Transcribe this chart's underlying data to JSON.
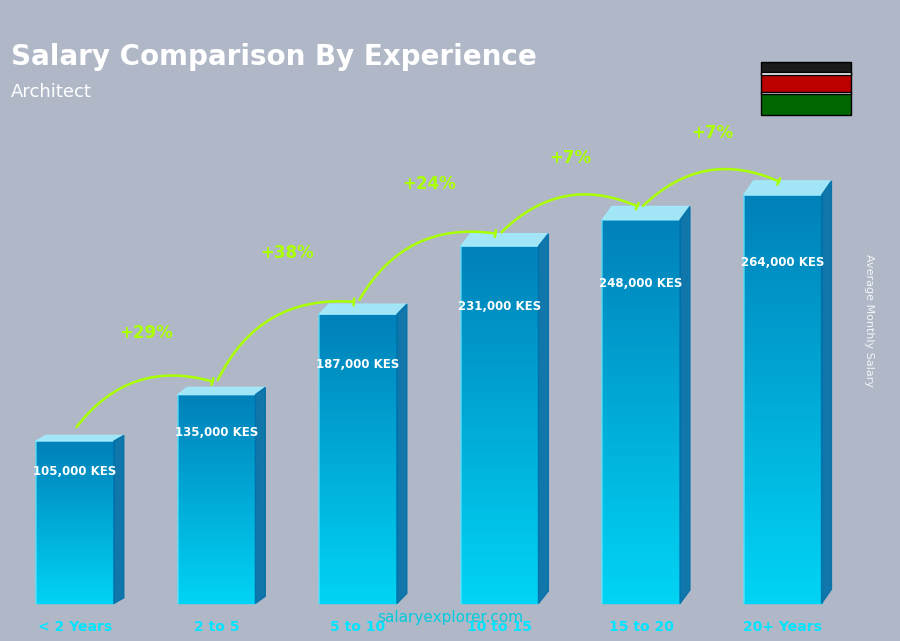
{
  "title": "Salary Comparison By Experience",
  "subtitle": "Architect",
  "categories": [
    "< 2 Years",
    "2 to 5",
    "5 to 10",
    "10 to 15",
    "15 to 20",
    "20+ Years"
  ],
  "values": [
    105000,
    135000,
    187000,
    231000,
    248000,
    264000
  ],
  "value_labels": [
    "105,000 KES",
    "135,000 KES",
    "187,000 KES",
    "231,000 KES",
    "248,000 KES",
    "264,000 KES"
  ],
  "pct_labels": [
    "+29%",
    "+38%",
    "+24%",
    "+7%",
    "+7%"
  ],
  "bar_color_top": "#00d4f5",
  "bar_color_bottom": "#0090c0",
  "bar_color_side": "#007aaa",
  "background_color": "#b0b8c8",
  "title_color": "#ffffff",
  "subtitle_color": "#ffffff",
  "value_label_color": "#ffffff",
  "pct_color": "#aaff00",
  "xlabel_color": "#00e5ff",
  "ylabel_text": "Average Monthly Salary",
  "footer_text": "salaryexplorer.com",
  "footer_bold": "salary",
  "ylim_max": 310000
}
